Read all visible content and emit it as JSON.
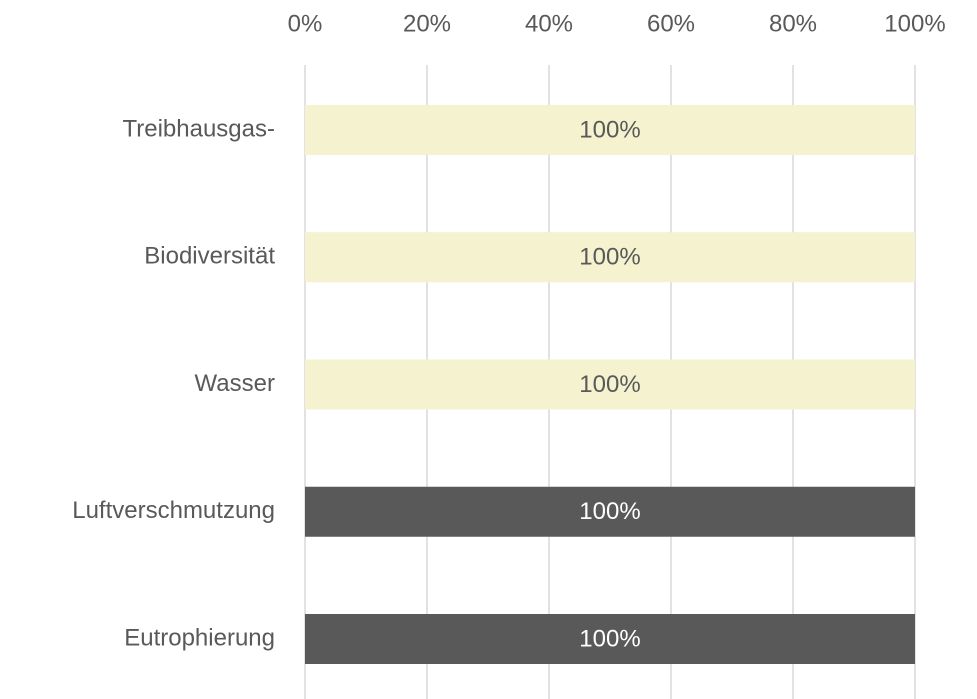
{
  "chart_data": {
    "type": "barh",
    "categories": [
      "Treibhausgas-",
      "Biodiversität",
      "Wasser",
      "Luftverschmutzung",
      "Eutrophierung"
    ],
    "values": [
      100,
      100,
      100,
      100,
      100
    ],
    "value_labels": [
      "100%",
      "100%",
      "100%",
      "100%",
      "100%"
    ],
    "colors": [
      "#f4f2cf",
      "#f4f2cf",
      "#f4f2cf",
      "#595959",
      "#595959"
    ],
    "xlim": [
      0,
      100
    ],
    "xticks": [
      {
        "value": 0,
        "label": "0%"
      },
      {
        "value": 20,
        "label": "20%"
      },
      {
        "value": 40,
        "label": "40%"
      },
      {
        "value": 60,
        "label": "60%"
      },
      {
        "value": 80,
        "label": "80%"
      },
      {
        "value": 100,
        "label": "100%"
      }
    ],
    "grid": true
  }
}
